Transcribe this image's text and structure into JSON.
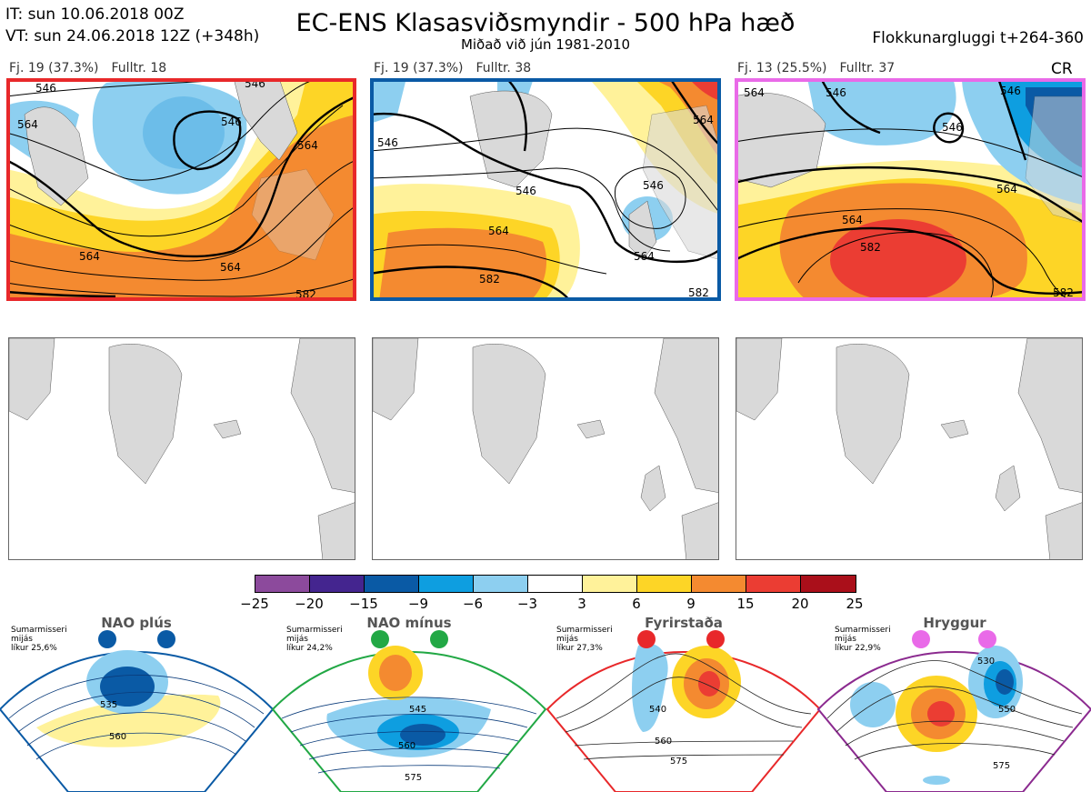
{
  "header": {
    "it_line": "IT: sun 10.06.2018 00Z",
    "vt_line": "VT: sun 24.06.2018 12Z  (+348h)",
    "title": "EC-ENS Klasasviðsmyndir - 500 hPa hæð",
    "subtitle": "Miðað við jún 1981-2010",
    "window": "Flokkunargluggi t+264-360"
  },
  "panels": [
    {
      "count_label": "Fj. 19 (37.3%)",
      "rep_label": "Fulltr. 18",
      "border_color": "#e8282a",
      "contour_labels": [
        "546",
        "546",
        "564",
        "564",
        "564",
        "564",
        "582"
      ],
      "extra": ""
    },
    {
      "count_label": "Fj. 19 (37.3%)",
      "rep_label": "Fulltr. 38",
      "border_color": "#0a5aa5",
      "contour_labels": [
        "546",
        "546",
        "546",
        "564",
        "564",
        "582",
        "582",
        "564"
      ],
      "extra": ""
    },
    {
      "count_label": "Fj. 13 (25.5%)",
      "rep_label": "Fulltr. 37",
      "border_color": "#e96ae8",
      "contour_labels": [
        "564",
        "546",
        "546",
        "546",
        "564",
        "564",
        "582",
        "582"
      ],
      "extra": "CR"
    }
  ],
  "colorbar": {
    "colors": [
      "#8c4a9c",
      "#44258f",
      "#0a5aa5",
      "#0e9ee0",
      "#8dcff0",
      "#ffffff",
      "#fff29a",
      "#fdd526",
      "#f48a30",
      "#eb3d33",
      "#aa0f1a"
    ],
    "ticks": [
      "−25",
      "−20",
      "−15",
      "−9",
      "−6",
      "−3",
      "3",
      "6",
      "9",
      "15",
      "20",
      "25"
    ]
  },
  "climate_regimes": [
    {
      "name": "NAO plús",
      "line1": "Sumarmisseri",
      "line2": "mijás",
      "line3": "líkur 25,6%",
      "color": "#0a5aa5",
      "labels": [
        "535",
        "560"
      ]
    },
    {
      "name": "NAO mínus",
      "line1": "Sumarmisseri",
      "line2": "mijás",
      "line3": "líkur 24,2%",
      "color": "#22a845",
      "labels": [
        "545",
        "560",
        "575"
      ]
    },
    {
      "name": "Fyrirstaða",
      "line1": "Sumarmisseri",
      "line2": "mijás",
      "line3": "líkur 27,3%",
      "color": "#e8282a",
      "labels": [
        "540",
        "560",
        "575"
      ]
    },
    {
      "name": "Hryggur",
      "line1": "Sumarmisseri",
      "line2": "mijás",
      "line3": "líkur 22,9%",
      "color": "#e96ae8",
      "labels": [
        "530",
        "550",
        "575"
      ]
    }
  ]
}
